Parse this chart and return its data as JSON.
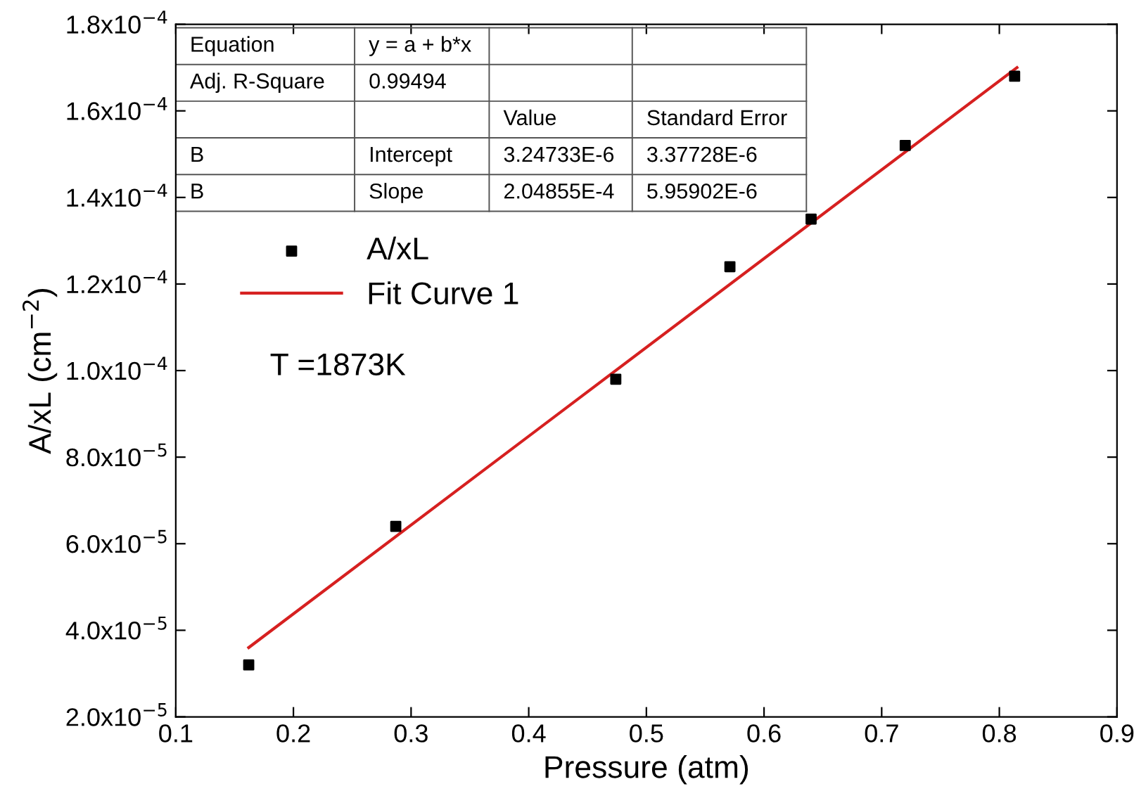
{
  "chart_data": {
    "type": "scatter",
    "xlabel": "Pressure (atm)",
    "ylabel": "A/xL (cm$^{−2}$)",
    "series": [
      {
        "name": "A/xL",
        "color": "#000000",
        "marker": "square",
        "x": [
          0.162,
          0.287,
          0.474,
          0.571,
          0.64,
          0.72,
          0.813
        ],
        "values": [
          3.2e-05,
          6.4e-05,
          9.8e-05,
          0.000124,
          0.000135,
          0.000152,
          0.000168
        ]
      },
      {
        "name": "Fit Curve 1",
        "type": "line",
        "color": "#d62020",
        "marker": "none",
        "line_style": "solid",
        "x": [
          0.162,
          0.815
        ],
        "values": [
          3.6e-05,
          0.00017
        ]
      }
    ],
    "xlim": [
      0.1,
      0.9
    ],
    "xticks": [
      0.1,
      0.2,
      0.3,
      0.4,
      0.5,
      0.6,
      0.7,
      0.8,
      0.9
    ],
    "ylim": [
      2e-05,
      0.00018
    ],
    "yticks": [
      {
        "value": 2e-05,
        "label": "2.0x10$^{−5}$"
      },
      {
        "value": 4e-05,
        "label": "4.0x10$^{−5}$"
      },
      {
        "value": 6e-05,
        "label": "6.0x10$^{−5}$"
      },
      {
        "value": 8e-05,
        "label": "8.0x10$^{−5}$"
      },
      {
        "value": 0.0001,
        "label": "1.0x10$^{−4}$"
      },
      {
        "value": 0.00012,
        "label": "1.2x10$^{−4}$"
      },
      {
        "value": 0.00014,
        "label": "1.4x10$^{−4}$"
      },
      {
        "value": 0.00016,
        "label": "1.6x10$^{−4}$"
      },
      {
        "value": 0.00018,
        "label": "1.8x10$^{−4}$"
      }
    ],
    "legend": "left",
    "grid": false,
    "annotations": [
      "Equation",
      "y = a + b*x",
      "Adj. R-Square",
      "0.99494",
      "Value",
      "Standard Error",
      "B",
      "Intercept",
      "3.24733E-6",
      "3.37728E-6",
      "B",
      "Slope",
      "2.04855E-4",
      "5.95902E-6",
      "T =1873K"
    ]
  }
}
